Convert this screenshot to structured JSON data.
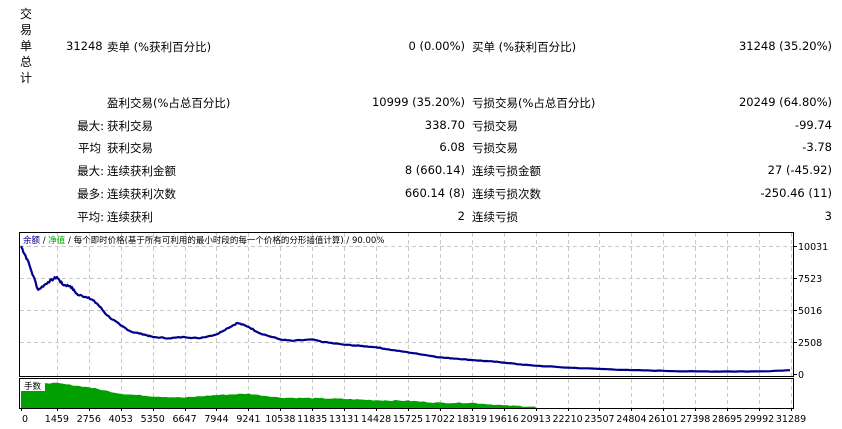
{
  "summary": {
    "vertical_title": [
      "交",
      "易",
      "单",
      "总",
      "计"
    ],
    "total_trades": "31248",
    "short_label": "卖单 (%获利百分比)",
    "short_value": "0 (0.00%)",
    "long_label": "买单 (%获利百分比)",
    "long_value": "31248 (35.20%)"
  },
  "rows": [
    {
      "prefix": "",
      "left_label": "盈利交易(%占总百分比)",
      "left_value": "10999 (35.20%)",
      "right_label": "亏损交易(%占总百分比)",
      "right_value": "20249 (64.80%)"
    },
    {
      "prefix": "最大:",
      "left_label": "获利交易",
      "left_value": "338.70",
      "right_label": "亏损交易",
      "right_value": "-99.74"
    },
    {
      "prefix": "平均",
      "left_label": "获利交易",
      "left_value": "6.08",
      "right_label": "亏损交易",
      "right_value": "-3.78"
    },
    {
      "prefix": "最大:",
      "left_label": "连续获利金额",
      "left_value": "8 (660.14)",
      "right_label": "连续亏损金额",
      "right_value": "27 (-45.92)"
    },
    {
      "prefix": "最多:",
      "left_label": "连续获利次数",
      "left_value": "660.14 (8)",
      "right_label": "连续亏损次数",
      "right_value": "-250.46 (11)"
    },
    {
      "prefix": "平均:",
      "left_label": "连续获利",
      "left_value": "2",
      "right_label": "连续亏损",
      "right_value": "3"
    }
  ],
  "chart": {
    "legend": {
      "balance": "余额",
      "sep1": " / ",
      "equity": "净值",
      "sep2": " / 每个即时价格(基于所有可利用的最小时段的每一个价格的分形插值计算) / 90.00%"
    },
    "volume_label": "手数",
    "colors": {
      "balance": "#00008B",
      "equity": "#00AA00",
      "volume": "#00A000",
      "grid": "#C8C8C8",
      "frame": "#000000"
    }
  },
  "chart_data": {
    "type": "line",
    "title": "余额 / 净值 / 每个即时价格(基于所有可利用的最小时段的每一个价格的分形插值计算) / 90.00%",
    "xlabel": "",
    "ylabel": "",
    "ylim": [
      0,
      10031
    ],
    "y_ticks": [
      10031,
      7523,
      5016,
      2508,
      0
    ],
    "x_ticks": [
      0,
      1459,
      2756,
      4053,
      5350,
      6647,
      7944,
      9241,
      10538,
      11835,
      13131,
      14428,
      15725,
      17022,
      18319,
      19616,
      20913,
      22210,
      23507,
      24804,
      26101,
      27398,
      28695,
      29992,
      31289
    ],
    "grid": true,
    "series": [
      {
        "name": "余额",
        "x": [
          0,
          250,
          700,
          1100,
          1459,
          1700,
          2000,
          2300,
          2756,
          3100,
          3500,
          4053,
          4500,
          5000,
          5350,
          6000,
          6647,
          7200,
          7944,
          8400,
          8800,
          9241,
          9700,
          10538,
          11000,
          11835,
          12300,
          13131,
          13800,
          14428,
          15000,
          15725,
          16400,
          17022,
          17700,
          18319,
          19000,
          19616,
          20300,
          20913,
          22210,
          23507,
          24804,
          26101,
          27398,
          28695,
          29992,
          31248
        ],
        "values": [
          10031,
          9000,
          6600,
          7200,
          7600,
          7000,
          6900,
          6200,
          6000,
          5500,
          4600,
          3800,
          3300,
          3100,
          2900,
          2800,
          2900,
          2800,
          3100,
          3600,
          4000,
          3700,
          3200,
          2700,
          2600,
          2700,
          2500,
          2300,
          2200,
          2100,
          1900,
          1700,
          1500,
          1300,
          1200,
          1100,
          1000,
          900,
          750,
          650,
          500,
          400,
          300,
          250,
          200,
          200,
          200,
          300
        ]
      },
      {
        "name": "手数",
        "type": "area",
        "x": [
          0,
          1459,
          2756,
          4053,
          5350,
          6647,
          7944,
          9241,
          10538,
          11835,
          13131,
          14428,
          15725,
          17022,
          18319,
          19616,
          20913
        ],
        "values": [
          1.0,
          0.95,
          0.8,
          0.55,
          0.45,
          0.4,
          0.5,
          0.55,
          0.4,
          0.38,
          0.35,
          0.3,
          0.28,
          0.2,
          0.2,
          0.1,
          0.05
        ]
      }
    ]
  }
}
